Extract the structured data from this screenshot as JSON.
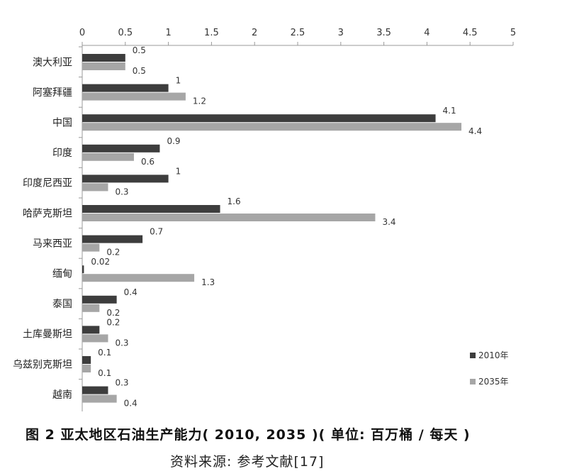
{
  "chart_data": {
    "type": "bar",
    "orientation": "horizontal",
    "categories": [
      "澳大利亚",
      "阿塞拜疆",
      "中国",
      "印度",
      "印度尼西亚",
      "哈萨克斯坦",
      "马来西亚",
      "缅甸",
      "泰国",
      "土库曼斯坦",
      "乌兹别克斯坦",
      "越南"
    ],
    "series": [
      {
        "name": "2010年",
        "color": "#3d3d3d",
        "values": [
          0.5,
          1,
          4.1,
          0.9,
          1,
          1.6,
          0.7,
          0.02,
          0.4,
          0.2,
          0.1,
          0.3
        ]
      },
      {
        "name": "2035年",
        "color": "#a6a6a6",
        "values": [
          0.5,
          1.2,
          4.4,
          0.6,
          0.3,
          3.4,
          0.2,
          1.3,
          0.2,
          0.3,
          0.1,
          0.4
        ]
      }
    ],
    "x_ticks": [
      "0",
      "0.5",
      "1",
      "1.5",
      "2",
      "2.5",
      "3",
      "3.5",
      "4",
      "4.5",
      "5"
    ],
    "xlim": [
      0,
      5
    ],
    "axis_position": "top",
    "grid": false,
    "legend_position": "bottom-right"
  },
  "caption": {
    "title": "图 2  亚太地区石油生产能力( 2010, 2035 )( 单位: 百万桶 / 每天 )",
    "source": "资料来源: 参考文献[17]"
  }
}
